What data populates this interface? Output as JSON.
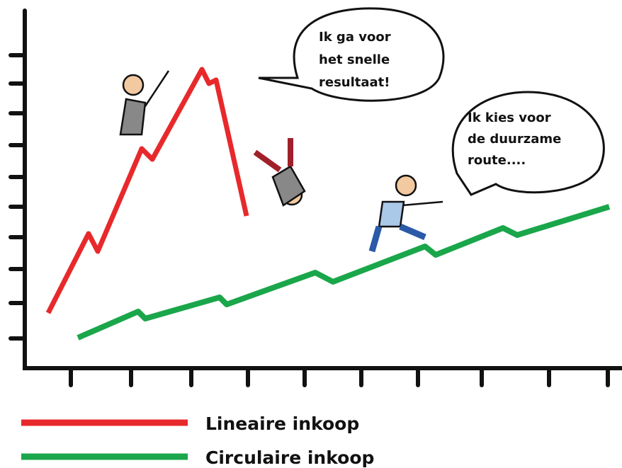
{
  "bubbles": [
    {
      "lines": [
        "Ik ga voor",
        "het snelle",
        "resultaat!"
      ]
    },
    {
      "lines": [
        "Ik kies voor",
        "de duurzame",
        "route...."
      ]
    }
  ],
  "legend": [
    {
      "label": "Lineaire inkoop",
      "color": "#e8292b"
    },
    {
      "label": "Circulaire inkoop",
      "color": "#1aa64a"
    }
  ]
}
